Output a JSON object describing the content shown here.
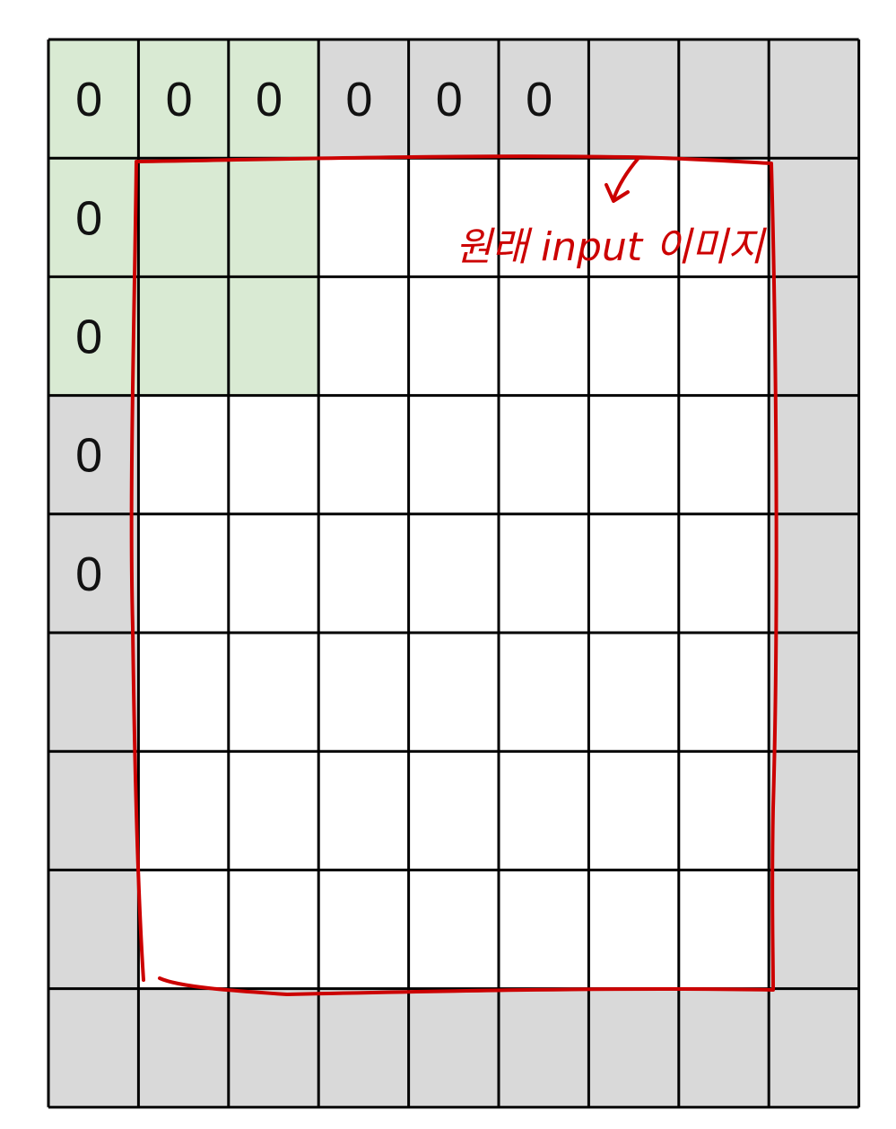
{
  "grid": {
    "rows": 9,
    "cols": 9,
    "zero_label": "0",
    "zero_cells": [
      [
        0,
        0
      ],
      [
        0,
        1
      ],
      [
        0,
        2
      ],
      [
        0,
        3
      ],
      [
        0,
        4
      ],
      [
        0,
        5
      ],
      [
        1,
        0
      ],
      [
        2,
        0
      ],
      [
        3,
        0
      ],
      [
        4,
        0
      ]
    ],
    "kernel_cells": [
      [
        0,
        0
      ],
      [
        0,
        1
      ],
      [
        0,
        2
      ],
      [
        1,
        0
      ],
      [
        1,
        1
      ],
      [
        1,
        2
      ],
      [
        2,
        0
      ],
      [
        2,
        1
      ],
      [
        2,
        2
      ]
    ],
    "padding_rows": [
      0,
      8
    ],
    "padding_cols": [
      0,
      8
    ]
  },
  "colors": {
    "padding": "#d9d9d9",
    "kernel": "#d9ead3",
    "interior": "#ffffff",
    "grid_line": "#000000",
    "annotation": "#cc0000"
  },
  "annotation": {
    "label": "원래 input 이미지"
  }
}
